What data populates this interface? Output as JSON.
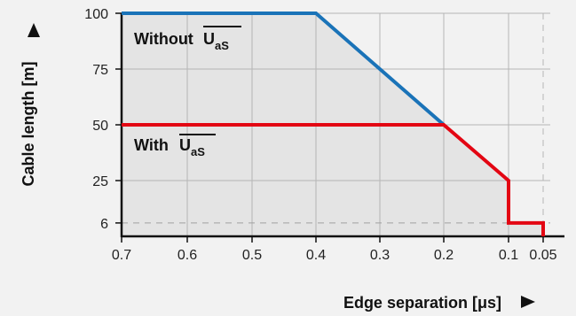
{
  "chart_data": {
    "type": "line",
    "xlabel": "Edge separation [μs]",
    "ylabel": "Cable length [m]",
    "x_ticks": [
      "0.7",
      "0.6",
      "0.5",
      "0.4",
      "0.3",
      "0.2",
      "0.1",
      "0.05"
    ],
    "y_ticks": [
      "100",
      "75",
      "50",
      "25",
      "6"
    ],
    "x_range_reversed": [
      0.7,
      0.05
    ],
    "ylim": [
      0,
      100
    ],
    "grid": true,
    "series": [
      {
        "color": "#1a73b8",
        "points": [
          [
            0.7,
            100
          ],
          [
            0.4,
            100
          ],
          [
            0.2,
            50
          ]
        ]
      },
      {
        "color": "#e30613",
        "points": [
          [
            0.7,
            50
          ],
          [
            0.2,
            50
          ],
          [
            0.1,
            25
          ],
          [
            0.1,
            6
          ],
          [
            0.05,
            6
          ],
          [
            0.05,
            0
          ]
        ]
      }
    ],
    "annotations": [
      {
        "text_main": "Without",
        "overline_text": "U",
        "subscript": "aS"
      },
      {
        "text_main": "With",
        "overline_text": "U",
        "subscript": "aS"
      }
    ]
  }
}
